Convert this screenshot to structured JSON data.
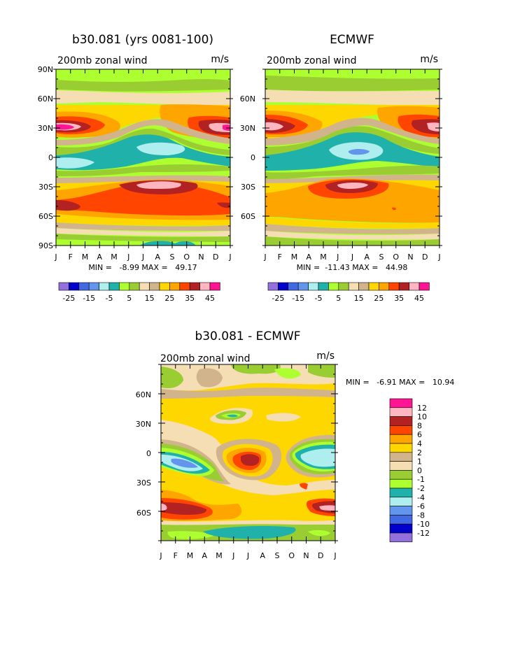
{
  "panels": [
    {
      "title": "b30.081 (yrs 0081-100)",
      "subtitle": "200mb zonal wind",
      "units": "m/s",
      "stats": "MIN =   -8.99 MAX =   49.17"
    },
    {
      "title": "ECMWF",
      "subtitle": "200mb zonal wind",
      "units": "m/s",
      "stats": "MIN =  -11.43 MAX =   44.98"
    },
    {
      "title": "b30.081 - ECMWF",
      "subtitle": "200mb zonal wind",
      "units": "m/s",
      "stats": "MIN =   -6.91 MAX =   10.94"
    }
  ],
  "months": [
    "J",
    "F",
    "M",
    "A",
    "M",
    "J",
    "J",
    "A",
    "S",
    "O",
    "N",
    "D",
    "J"
  ],
  "lat_labels_top_left": [
    "90N",
    "60N",
    "30N",
    "0",
    "30S",
    "60S",
    "90S"
  ],
  "lat_labels_top_right": [
    "60N",
    "30N",
    "0",
    "30S",
    "60S"
  ],
  "lat_labels_diff": [
    "60N",
    "30N",
    "0",
    "30S",
    "60S"
  ],
  "legend_top": {
    "colors": [
      "#9370db",
      "#0000cd",
      "#4169e1",
      "#6495ed",
      "#afeeee",
      "#20b2aa",
      "#adff2f",
      "#9acd32",
      "#f5deb3",
      "#d2b48c",
      "#ffd700",
      "#ffa500",
      "#ff4500",
      "#b22222",
      "#ffb6c1",
      "#ff1493"
    ],
    "labels": [
      "-25",
      "-15",
      "-5",
      "5",
      "15",
      "25",
      "35",
      "45"
    ]
  },
  "legend_diff": {
    "colors": [
      "#ff1493",
      "#ffb6c1",
      "#b22222",
      "#ff4500",
      "#ffa500",
      "#ffd700",
      "#d2b48c",
      "#f5deb3",
      "#9acd32",
      "#adff2f",
      "#20b2aa",
      "#afeeee",
      "#6495ed",
      "#4169e1",
      "#0000cd",
      "#9370db"
    ],
    "labels": [
      "12",
      "10",
      "8",
      "6",
      "4",
      "2",
      "1",
      "0",
      "-1",
      "-2",
      "-4",
      "-6",
      "-8",
      "-10",
      "-12"
    ]
  },
  "chart_data": [
    {
      "type": "heatmap",
      "title": "b30.081 (yrs 0081-100)",
      "subtitle": "200mb zonal wind",
      "units": "m/s",
      "x": [
        "J",
        "F",
        "M",
        "A",
        "M",
        "J",
        "J",
        "A",
        "S",
        "O",
        "N",
        "D",
        "J"
      ],
      "y": [
        "90N",
        "60N",
        "30N",
        "0",
        "30S",
        "60S",
        "90S"
      ],
      "min": -8.99,
      "max": 49.17,
      "jets": [
        {
          "lon_month": "Jan",
          "lat": 30,
          "peak": 45
        },
        {
          "lon_month": "Dec",
          "lat": 30,
          "peak": 45
        },
        {
          "lon_month": "Aug",
          "lat": -28,
          "peak": 40
        },
        {
          "lon_month": "Jul",
          "lat": 8,
          "peak": -6
        }
      ]
    },
    {
      "type": "heatmap",
      "title": "ECMWF",
      "subtitle": "200mb zonal wind",
      "units": "m/s",
      "x": [
        "J",
        "F",
        "M",
        "A",
        "M",
        "J",
        "J",
        "A",
        "S",
        "O",
        "N",
        "D",
        "J"
      ],
      "y": [
        "60N",
        "30N",
        "0",
        "30S",
        "60S"
      ],
      "min": -11.43,
      "max": 44.98,
      "jets": [
        {
          "lon_month": "Jan",
          "lat": 30,
          "peak": 40
        },
        {
          "lon_month": "Dec",
          "lat": 30,
          "peak": 40
        },
        {
          "lon_month": "Jul",
          "lat": -28,
          "peak": 40
        },
        {
          "lon_month": "Jul",
          "lat": 6,
          "peak": -10
        }
      ]
    },
    {
      "type": "heatmap",
      "title": "b30.081 - ECMWF",
      "subtitle": "200mb zonal wind",
      "units": "m/s",
      "x": [
        "J",
        "F",
        "M",
        "A",
        "M",
        "J",
        "J",
        "A",
        "S",
        "O",
        "N",
        "D",
        "J"
      ],
      "y": [
        "60N",
        "30N",
        "0",
        "30S",
        "60S"
      ],
      "min": -6.91,
      "max": 10.94,
      "legend_levels": [
        12,
        10,
        8,
        6,
        4,
        2,
        1,
        0,
        -1,
        -2,
        -4,
        -6,
        -8,
        -10,
        -12
      ]
    }
  ]
}
